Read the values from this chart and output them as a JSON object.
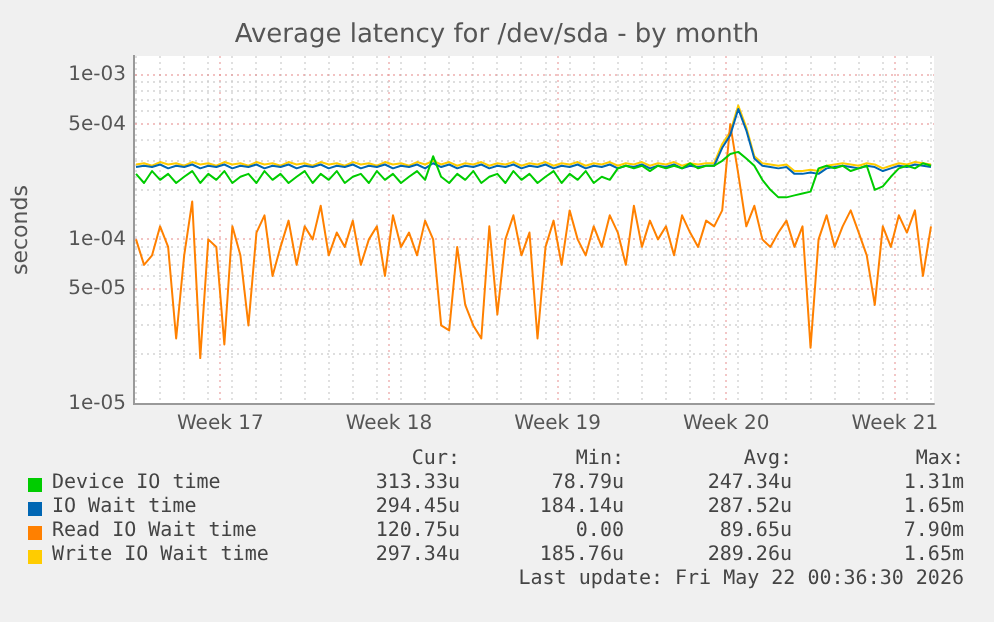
{
  "chart_data": {
    "type": "line",
    "title": "Average latency for /dev/sda - by month",
    "ylabel": "seconds",
    "log": "y",
    "grid": true,
    "legend": "bottom",
    "marker": "none",
    "line_style": "solid",
    "xlim": [
      "2026-04-19T22:00",
      "2026-05-23T03:00"
    ],
    "xticks": [
      {
        "value": "2026-04-23T12:00",
        "label": "Week 17"
      },
      {
        "value": "2026-04-30T12:00",
        "label": "Week 18"
      },
      {
        "value": "2026-05-07T12:00",
        "label": "Week 19"
      },
      {
        "value": "2026-05-14T12:00",
        "label": "Week 20"
      },
      {
        "value": "2026-05-21T12:00",
        "label": "Week 21"
      },
      {
        "value": "2026-04-20T00:00",
        "label": null
      },
      {
        "value": "2026-04-21T00:00",
        "label": null
      },
      {
        "value": "2026-04-22T00:00",
        "label": null
      },
      {
        "value": "2026-04-23T00:00",
        "label": null
      },
      {
        "value": "2026-04-24T00:00",
        "label": null
      },
      {
        "value": "2026-04-25T00:00",
        "label": null
      },
      {
        "value": "2026-04-26T00:00",
        "label": null
      },
      {
        "value": "2026-04-27T00:00",
        "label": null
      },
      {
        "value": "2026-04-28T00:00",
        "label": null
      },
      {
        "value": "2026-04-29T00:00",
        "label": null
      },
      {
        "value": "2026-04-30T00:00",
        "label": null
      },
      {
        "value": "2026-05-01T00:00",
        "label": null
      },
      {
        "value": "2026-05-02T00:00",
        "label": null
      },
      {
        "value": "2026-05-03T00:00",
        "label": null
      },
      {
        "value": "2026-05-04T00:00",
        "label": null
      },
      {
        "value": "2026-05-05T00:00",
        "label": null
      },
      {
        "value": "2026-05-06T00:00",
        "label": null
      },
      {
        "value": "2026-05-07T00:00",
        "label": null
      },
      {
        "value": "2026-05-08T00:00",
        "label": null
      },
      {
        "value": "2026-05-09T00:00",
        "label": null
      },
      {
        "value": "2026-05-10T00:00",
        "label": null
      },
      {
        "value": "2026-05-11T00:00",
        "label": null
      },
      {
        "value": "2026-05-12T00:00",
        "label": null
      },
      {
        "value": "2026-05-13T00:00",
        "label": null
      },
      {
        "value": "2026-05-14T00:00",
        "label": null
      },
      {
        "value": "2026-05-15T00:00",
        "label": null
      },
      {
        "value": "2026-05-16T00:00",
        "label": null
      },
      {
        "value": "2026-05-17T00:00",
        "label": null
      },
      {
        "value": "2026-05-18T00:00",
        "label": null
      },
      {
        "value": "2026-05-19T00:00",
        "label": null
      },
      {
        "value": "2026-05-20T00:00",
        "label": null
      },
      {
        "value": "2026-05-21T00:00",
        "label": null
      },
      {
        "value": "2026-05-22T00:00",
        "label": null
      },
      {
        "value": "2026-05-23T00:00",
        "label": null
      }
    ],
    "ylim": [
      1e-05,
      0.0013
    ],
    "yticks": [
      {
        "value": 1e-05,
        "label": "1e-05"
      },
      {
        "value": 2e-05,
        "label": null
      },
      {
        "value": 3e-05,
        "label": null
      },
      {
        "value": 4e-05,
        "label": null
      },
      {
        "value": 5e-05,
        "label": "5e-05"
      },
      {
        "value": 6e-05,
        "label": null
      },
      {
        "value": 7e-05,
        "label": null
      },
      {
        "value": 8e-05,
        "label": null
      },
      {
        "value": 9e-05,
        "label": null
      },
      {
        "value": 0.0001,
        "label": "1e-04"
      },
      {
        "value": 0.0002,
        "label": null
      },
      {
        "value": 0.0003,
        "label": null
      },
      {
        "value": 0.0004,
        "label": null
      },
      {
        "value": 0.0005,
        "label": "5e-04"
      },
      {
        "value": 0.0006,
        "label": null
      },
      {
        "value": 0.0007,
        "label": null
      },
      {
        "value": 0.0008,
        "label": null
      },
      {
        "value": 0.0009,
        "label": null
      },
      {
        "value": 0.001,
        "label": "1e-03"
      }
    ],
    "x": [
      "2026-04-20T00:00",
      "2026-04-20T08:00",
      "2026-04-20T16:00",
      "2026-04-21T00:00",
      "2026-04-21T08:00",
      "2026-04-21T16:00",
      "2026-04-22T00:00",
      "2026-04-22T08:00",
      "2026-04-22T16:00",
      "2026-04-23T00:00",
      "2026-04-23T08:00",
      "2026-04-23T16:00",
      "2026-04-24T00:00",
      "2026-04-24T08:00",
      "2026-04-24T16:00",
      "2026-04-25T00:00",
      "2026-04-25T08:00",
      "2026-04-25T16:00",
      "2026-04-26T00:00",
      "2026-04-26T08:00",
      "2026-04-26T16:00",
      "2026-04-27T00:00",
      "2026-04-27T08:00",
      "2026-04-27T16:00",
      "2026-04-28T00:00",
      "2026-04-28T08:00",
      "2026-04-28T16:00",
      "2026-04-29T00:00",
      "2026-04-29T08:00",
      "2026-04-29T16:00",
      "2026-04-30T00:00",
      "2026-04-30T08:00",
      "2026-04-30T16:00",
      "2026-05-01T00:00",
      "2026-05-01T08:00",
      "2026-05-01T16:00",
      "2026-05-02T00:00",
      "2026-05-02T08:00",
      "2026-05-02T16:00",
      "2026-05-03T00:00",
      "2026-05-03T08:00",
      "2026-05-03T16:00",
      "2026-05-04T00:00",
      "2026-05-04T08:00",
      "2026-05-04T16:00",
      "2026-05-05T00:00",
      "2026-05-05T08:00",
      "2026-05-05T16:00",
      "2026-05-06T00:00",
      "2026-05-06T08:00",
      "2026-05-06T16:00",
      "2026-05-07T00:00",
      "2026-05-07T08:00",
      "2026-05-07T16:00",
      "2026-05-08T00:00",
      "2026-05-08T08:00",
      "2026-05-08T16:00",
      "2026-05-09T00:00",
      "2026-05-09T08:00",
      "2026-05-09T16:00",
      "2026-05-10T00:00",
      "2026-05-10T08:00",
      "2026-05-10T16:00",
      "2026-05-11T00:00",
      "2026-05-11T08:00",
      "2026-05-11T16:00",
      "2026-05-12T00:00",
      "2026-05-12T08:00",
      "2026-05-12T16:00",
      "2026-05-13T00:00",
      "2026-05-13T08:00",
      "2026-05-13T16:00",
      "2026-05-14T00:00",
      "2026-05-14T08:00",
      "2026-05-14T16:00",
      "2026-05-15T00:00",
      "2026-05-15T08:00",
      "2026-05-15T16:00",
      "2026-05-16T00:00",
      "2026-05-16T08:00",
      "2026-05-16T16:00",
      "2026-05-17T00:00",
      "2026-05-17T08:00",
      "2026-05-17T16:00",
      "2026-05-18T00:00",
      "2026-05-18T08:00",
      "2026-05-18T16:00",
      "2026-05-19T00:00",
      "2026-05-19T08:00",
      "2026-05-19T16:00",
      "2026-05-20T00:00",
      "2026-05-20T08:00",
      "2026-05-20T16:00",
      "2026-05-21T00:00",
      "2026-05-21T08:00",
      "2026-05-21T16:00",
      "2026-05-22T00:00",
      "2026-05-22T08:00",
      "2026-05-22T16:00",
      "2026-05-23T00:00"
    ],
    "series": [
      {
        "name": "Device IO time",
        "color": "#00cc00",
        "values": [
          0.00025,
          0.00022,
          0.00026,
          0.00023,
          0.00025,
          0.00022,
          0.00024,
          0.00026,
          0.00022,
          0.00025,
          0.00023,
          0.00026,
          0.00022,
          0.00024,
          0.00025,
          0.00022,
          0.00026,
          0.00023,
          0.00025,
          0.00022,
          0.00024,
          0.00026,
          0.00022,
          0.00025,
          0.00023,
          0.00026,
          0.00022,
          0.00024,
          0.00025,
          0.00022,
          0.00026,
          0.00023,
          0.00025,
          0.00022,
          0.00024,
          0.00026,
          0.00023,
          0.00032,
          0.00024,
          0.00022,
          0.00025,
          0.00023,
          0.00026,
          0.00022,
          0.00024,
          0.00025,
          0.00022,
          0.00026,
          0.00023,
          0.00025,
          0.00022,
          0.00024,
          0.00026,
          0.00022,
          0.00025,
          0.00023,
          0.00026,
          0.00022,
          0.00024,
          0.00023,
          0.00027,
          0.00028,
          0.00027,
          0.00028,
          0.00026,
          0.00028,
          0.00027,
          0.00028,
          0.00027,
          0.00029,
          0.00027,
          0.00028,
          0.00028,
          0.0003,
          0.00033,
          0.00034,
          0.00031,
          0.00028,
          0.00023,
          0.0002,
          0.00018,
          0.00018,
          0.000185,
          0.00019,
          0.000195,
          0.00027,
          0.00028,
          0.00027,
          0.00028,
          0.00026,
          0.00027,
          0.00028,
          0.0002,
          0.00021,
          0.00024,
          0.00027,
          0.00028,
          0.00027,
          0.00029,
          0.00028
        ]
      },
      {
        "name": "IO Wait time",
        "color": "#0066b3",
        "values": [
          0.000275,
          0.00028,
          0.000275,
          0.000285,
          0.00027,
          0.00028,
          0.000275,
          0.000285,
          0.00027,
          0.00028,
          0.000275,
          0.000285,
          0.00027,
          0.00028,
          0.000275,
          0.000285,
          0.00027,
          0.00028,
          0.000275,
          0.000285,
          0.00027,
          0.00028,
          0.000275,
          0.000285,
          0.00027,
          0.00028,
          0.000275,
          0.000285,
          0.00027,
          0.00028,
          0.000275,
          0.000285,
          0.00027,
          0.00028,
          0.000275,
          0.000285,
          0.00027,
          0.00029,
          0.000275,
          0.000285,
          0.00027,
          0.00028,
          0.000275,
          0.000285,
          0.00027,
          0.00028,
          0.000275,
          0.000285,
          0.00027,
          0.00028,
          0.000275,
          0.000285,
          0.00027,
          0.00028,
          0.000275,
          0.000285,
          0.00027,
          0.00028,
          0.000275,
          0.000285,
          0.00027,
          0.00028,
          0.000275,
          0.000285,
          0.00027,
          0.00028,
          0.000275,
          0.000285,
          0.00027,
          0.00028,
          0.000275,
          0.00028,
          0.00028,
          0.00036,
          0.00043,
          0.00062,
          0.00046,
          0.00031,
          0.00028,
          0.000275,
          0.00027,
          0.000275,
          0.00025,
          0.00025,
          0.000255,
          0.00025,
          0.00027,
          0.000275,
          0.00028,
          0.000275,
          0.00027,
          0.00028,
          0.000275,
          0.00026,
          0.00027,
          0.00028,
          0.000275,
          0.000285,
          0.00028,
          0.000275
        ]
      },
      {
        "name": "Read IO Wait time",
        "color": "#ff8000",
        "values": [
          0.0001,
          7e-05,
          8e-05,
          0.00012,
          9e-05,
          2.5e-05,
          8e-05,
          0.00017,
          1.9e-05,
          0.0001,
          9e-05,
          2.3e-05,
          0.00012,
          8e-05,
          3e-05,
          0.00011,
          0.00014,
          6e-05,
          9e-05,
          0.00013,
          7e-05,
          0.00012,
          0.0001,
          0.00016,
          8e-05,
          0.00011,
          9e-05,
          0.00013,
          7e-05,
          0.0001,
          0.00012,
          6e-05,
          0.00014,
          9e-05,
          0.00011,
          8e-05,
          0.00013,
          0.0001,
          3e-05,
          2.8e-05,
          9e-05,
          4e-05,
          3e-05,
          2.5e-05,
          0.00012,
          3.5e-05,
          0.0001,
          0.00014,
          8e-05,
          0.00011,
          2.5e-05,
          9e-05,
          0.00013,
          7e-05,
          0.00015,
          0.0001,
          8e-05,
          0.00012,
          9e-05,
          0.00014,
          0.00011,
          7e-05,
          0.00016,
          9e-05,
          0.00013,
          0.0001,
          0.00012,
          8e-05,
          0.00014,
          0.00011,
          9e-05,
          0.00013,
          0.00012,
          0.00015,
          0.0005,
          0.00025,
          0.00012,
          0.00016,
          0.0001,
          9e-05,
          0.00011,
          0.00013,
          9e-05,
          0.00012,
          2.2e-05,
          0.0001,
          0.00014,
          9e-05,
          0.00012,
          0.00015,
          0.00011,
          8e-05,
          4e-05,
          0.00012,
          9e-05,
          0.00014,
          0.00011,
          0.00015,
          6e-05,
          0.00012
        ]
      },
      {
        "name": "Write IO Wait time",
        "color": "#ffcc00",
        "values": [
          0.000285,
          0.00029,
          0.00028,
          0.000295,
          0.000285,
          0.00029,
          0.00028,
          0.000295,
          0.000285,
          0.00029,
          0.00028,
          0.000295,
          0.000285,
          0.00029,
          0.00028,
          0.000295,
          0.000285,
          0.00029,
          0.00028,
          0.000295,
          0.000285,
          0.00029,
          0.00028,
          0.000295,
          0.000285,
          0.00029,
          0.00028,
          0.000295,
          0.000285,
          0.00029,
          0.00028,
          0.000295,
          0.000285,
          0.00029,
          0.00028,
          0.000295,
          0.000285,
          0.0003,
          0.000285,
          0.000295,
          0.00028,
          0.00029,
          0.000285,
          0.000295,
          0.00028,
          0.00029,
          0.000285,
          0.000295,
          0.00028,
          0.00029,
          0.000285,
          0.000295,
          0.00028,
          0.00029,
          0.000285,
          0.000295,
          0.00028,
          0.00029,
          0.000285,
          0.000295,
          0.00028,
          0.00029,
          0.000285,
          0.000295,
          0.00028,
          0.00029,
          0.000285,
          0.000295,
          0.00028,
          0.00029,
          0.000285,
          0.00029,
          0.00029,
          0.00038,
          0.00045,
          0.00065,
          0.00048,
          0.00032,
          0.00029,
          0.000285,
          0.00028,
          0.000285,
          0.00026,
          0.00026,
          0.000265,
          0.00026,
          0.00028,
          0.000285,
          0.00029,
          0.000285,
          0.00028,
          0.00029,
          0.000285,
          0.00027,
          0.00028,
          0.00029,
          0.000285,
          0.000295,
          0.00029,
          0.000285
        ]
      }
    ],
    "annotations": [
      "Cur:",
      "Min:",
      "Avg:",
      "Max:",
      "313.33u",
      "78.79u",
      "247.34u",
      "1.31m",
      "294.45u",
      "184.14u",
      "287.52u",
      "1.65m",
      "120.75u",
      "0.00",
      "89.65u",
      "7.90m",
      "297.34u",
      "185.76u",
      "289.26u",
      "1.65m",
      "Last update: Fri May 22 00:36:30 2026"
    ]
  }
}
